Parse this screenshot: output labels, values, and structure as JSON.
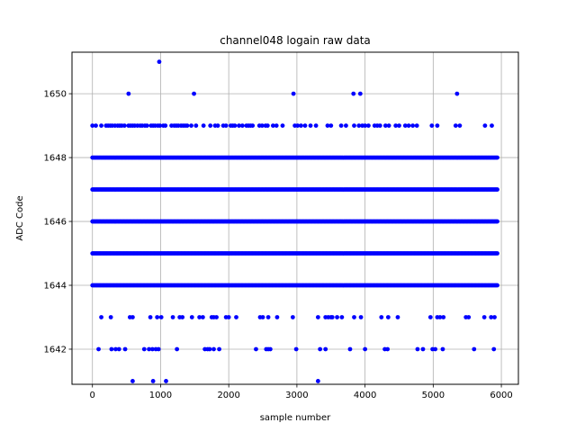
{
  "chart_data": {
    "type": "scatter",
    "title": "channel048 logain raw data",
    "xlabel": "sample number",
    "ylabel": "ADC Code",
    "xlim": [
      -300,
      6250
    ],
    "ylim": [
      1640.9,
      1651.3
    ],
    "xticks": [
      0,
      1000,
      2000,
      3000,
      4000,
      5000,
      6000
    ],
    "yticks": [
      1642,
      1644,
      1646,
      1648,
      1650
    ],
    "grid": true,
    "marker_color": "#0000ff",
    "series": [
      {
        "sample_range": [
          0,
          5940
        ],
        "dense_levels": [
          1644,
          1645,
          1646,
          1647,
          1648
        ],
        "sparse_points": [
          {
            "y": 1651,
            "x": [
              980
            ]
          },
          {
            "y": 1650,
            "x": [
              530,
              1490,
              2950,
              3830,
              3930,
              5350
            ]
          },
          {
            "y": 1649,
            "x": [
              0,
              50,
              130,
              200,
              230,
              260,
              290,
              330,
              370,
              400,
              430,
              470,
              530,
              560,
              590,
              620,
              660,
              700,
              730,
              770,
              800,
              860,
              890,
              920,
              960,
              990,
              1040,
              1070,
              1160,
              1200,
              1230,
              1260,
              1300,
              1330,
              1360,
              1390,
              1450,
              1520,
              1630,
              1730,
              1800,
              1840,
              1920,
              1960,
              2030,
              2060,
              2090,
              2150,
              2200,
              2260,
              2290,
              2320,
              2350,
              2450,
              2490,
              2540,
              2570,
              2650,
              2700,
              2790,
              2970,
              3010,
              3060,
              3120,
              3200,
              3280,
              3450,
              3500,
              3650,
              3720,
              3840,
              3910,
              3960,
              4000,
              4050,
              4140,
              4180,
              4220,
              4300,
              4350,
              4450,
              4500,
              4590,
              4640,
              4700,
              4760,
              4980,
              5060,
              5330,
              5390,
              5760,
              5860
            ]
          },
          {
            "y": 1643,
            "x": [
              130,
              270,
              550,
              590,
              850,
              950,
              1010,
              1180,
              1280,
              1320,
              1460,
              1570,
              1620,
              1750,
              1780,
              1820,
              1960,
              2000,
              2110,
              2460,
              2500,
              2580,
              2710,
              2940,
              3310,
              3420,
              3460,
              3500,
              3520,
              3590,
              3660,
              3840,
              3940,
              4240,
              4340,
              4480,
              4960,
              5060,
              5100,
              5150,
              5480,
              5520,
              5750,
              5850,
              5900
            ]
          },
          {
            "y": 1642,
            "x": [
              90,
              280,
              340,
              390,
              480,
              760,
              830,
              880,
              930,
              970,
              1240,
              1650,
              1690,
              1720,
              1780,
              1860,
              2400,
              2550,
              2580,
              2610,
              2990,
              3340,
              3420,
              3780,
              4000,
              4290,
              4330,
              4770,
              4850,
              4990,
              5030,
              5140,
              5600,
              5890
            ]
          },
          {
            "y": 1641,
            "x": [
              590,
              890,
              1080,
              3310
            ]
          }
        ]
      }
    ]
  }
}
